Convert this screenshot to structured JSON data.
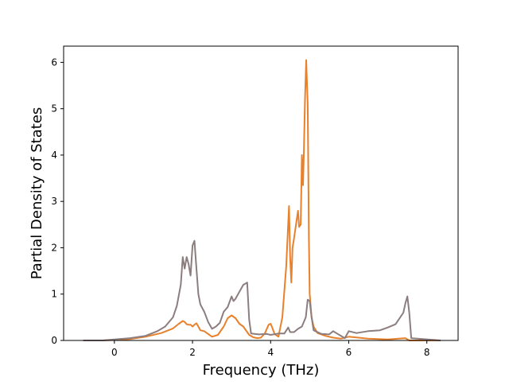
{
  "chart_data": {
    "type": "line",
    "title": "",
    "xlabel": "Frequency (THz)",
    "ylabel": "Partial Density of States",
    "xlim": [
      -1.3,
      8.8
    ],
    "ylim": [
      0,
      6.35
    ],
    "xticks": [
      0,
      2,
      4,
      6,
      8
    ],
    "yticks": [
      0,
      1,
      2,
      3,
      4,
      5,
      6
    ],
    "grid": false,
    "legend": "none",
    "series": [
      {
        "color": "#e8812c",
        "x": [
          -0.8,
          -0.3,
          0.0,
          0.4,
          0.8,
          1.2,
          1.5,
          1.65,
          1.75,
          1.8,
          1.85,
          1.9,
          1.95,
          2.0,
          2.05,
          2.1,
          2.15,
          2.2,
          2.3,
          2.5,
          2.65,
          2.8,
          2.9,
          3.0,
          3.1,
          3.2,
          3.3,
          3.45,
          3.55,
          3.65,
          3.75,
          3.85,
          3.95,
          4.0,
          4.05,
          4.1,
          4.2,
          4.3,
          4.4,
          4.47,
          4.5,
          4.53,
          4.56,
          4.6,
          4.65,
          4.7,
          4.73,
          4.77,
          4.8,
          4.83,
          4.85,
          4.88,
          4.91,
          4.95,
          4.98,
          5.0,
          5.05,
          5.1,
          5.2,
          5.4,
          5.6,
          5.8,
          6.0,
          6.5,
          7.0,
          7.45,
          7.55,
          8.35
        ],
        "values": [
          0,
          0,
          0.01,
          0.03,
          0.08,
          0.16,
          0.26,
          0.36,
          0.42,
          0.4,
          0.35,
          0.34,
          0.34,
          0.3,
          0.34,
          0.37,
          0.3,
          0.22,
          0.2,
          0.08,
          0.12,
          0.3,
          0.48,
          0.54,
          0.48,
          0.36,
          0.3,
          0.12,
          0.07,
          0.05,
          0.06,
          0.15,
          0.34,
          0.36,
          0.26,
          0.14,
          0.08,
          0.5,
          1.6,
          2.9,
          1.8,
          1.25,
          2.0,
          2.2,
          2.5,
          2.8,
          2.45,
          2.5,
          4.0,
          3.35,
          4.0,
          5.2,
          6.05,
          5.1,
          2.2,
          1.0,
          0.5,
          0.3,
          0.16,
          0.1,
          0.06,
          0.04,
          0.08,
          0.04,
          0.02,
          0.05,
          0.0,
          0
        ]
      },
      {
        "color": "#8c7d7f",
        "x": [
          -0.8,
          -0.3,
          0.0,
          0.4,
          0.8,
          1.1,
          1.3,
          1.5,
          1.6,
          1.7,
          1.75,
          1.8,
          1.85,
          1.9,
          1.95,
          2.0,
          2.05,
          2.1,
          2.15,
          2.2,
          2.3,
          2.4,
          2.5,
          2.6,
          2.7,
          2.8,
          2.9,
          3.0,
          3.05,
          3.1,
          3.2,
          3.3,
          3.4,
          3.45,
          3.5,
          3.7,
          3.9,
          4.0,
          4.2,
          4.35,
          4.45,
          4.5,
          4.6,
          4.7,
          4.8,
          4.9,
          4.95,
          5.0,
          5.05,
          5.1,
          5.3,
          5.5,
          5.6,
          5.7,
          5.9,
          6.0,
          6.2,
          6.5,
          6.8,
          7.0,
          7.2,
          7.4,
          7.45,
          7.5,
          7.55,
          7.6,
          8.35
        ],
        "values": [
          0,
          0,
          0.02,
          0.05,
          0.1,
          0.2,
          0.3,
          0.5,
          0.75,
          1.2,
          1.8,
          1.55,
          1.8,
          1.65,
          1.4,
          2.05,
          2.15,
          1.55,
          1.0,
          0.78,
          0.62,
          0.4,
          0.25,
          0.3,
          0.38,
          0.62,
          0.72,
          0.95,
          0.85,
          0.9,
          1.05,
          1.2,
          1.25,
          0.45,
          0.15,
          0.13,
          0.14,
          0.12,
          0.15,
          0.15,
          0.28,
          0.18,
          0.18,
          0.25,
          0.3,
          0.5,
          0.88,
          0.85,
          0.5,
          0.22,
          0.14,
          0.13,
          0.2,
          0.15,
          0.05,
          0.2,
          0.16,
          0.2,
          0.22,
          0.28,
          0.35,
          0.6,
          0.8,
          0.95,
          0.6,
          0.05,
          0
        ]
      }
    ]
  }
}
